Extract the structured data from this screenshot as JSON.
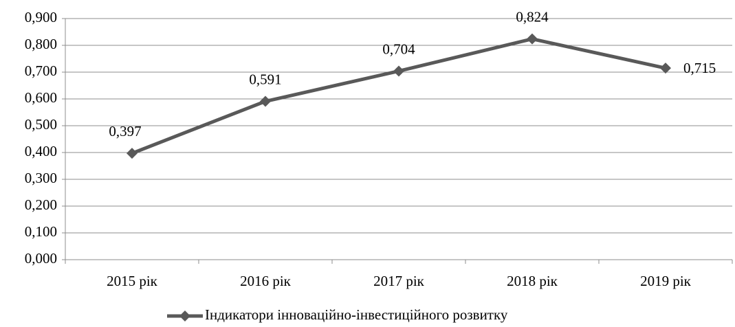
{
  "chart_data": {
    "type": "line",
    "categories": [
      "2015 рік",
      "2016 рік",
      "2017 рік",
      "2018 рік",
      "2019 рік"
    ],
    "series": [
      {
        "name": "Індикатори інноваційно-інвестиційного розвитку",
        "color": "#595959",
        "values": [
          0.397,
          0.591,
          0.704,
          0.824,
          0.715
        ],
        "value_labels": [
          "0,397",
          "0,591",
          "0,704",
          "0,824",
          "0,715"
        ]
      }
    ],
    "ylim": [
      0,
      0.9
    ],
    "yticks": [
      {
        "value": 0,
        "label": "0,000"
      },
      {
        "value": 0.1,
        "label": "0,100"
      },
      {
        "value": 0.2,
        "label": "0,200"
      },
      {
        "value": 0.3,
        "label": "0,300"
      },
      {
        "value": 0.4,
        "label": "0,400"
      },
      {
        "value": 0.5,
        "label": "0,500"
      },
      {
        "value": 0.6,
        "label": "0,600"
      },
      {
        "value": 0.7,
        "label": "0,700"
      },
      {
        "value": 0.8,
        "label": "0,800"
      },
      {
        "value": 0.9,
        "label": "0,900"
      }
    ],
    "grid": true,
    "legend": "bottom"
  }
}
